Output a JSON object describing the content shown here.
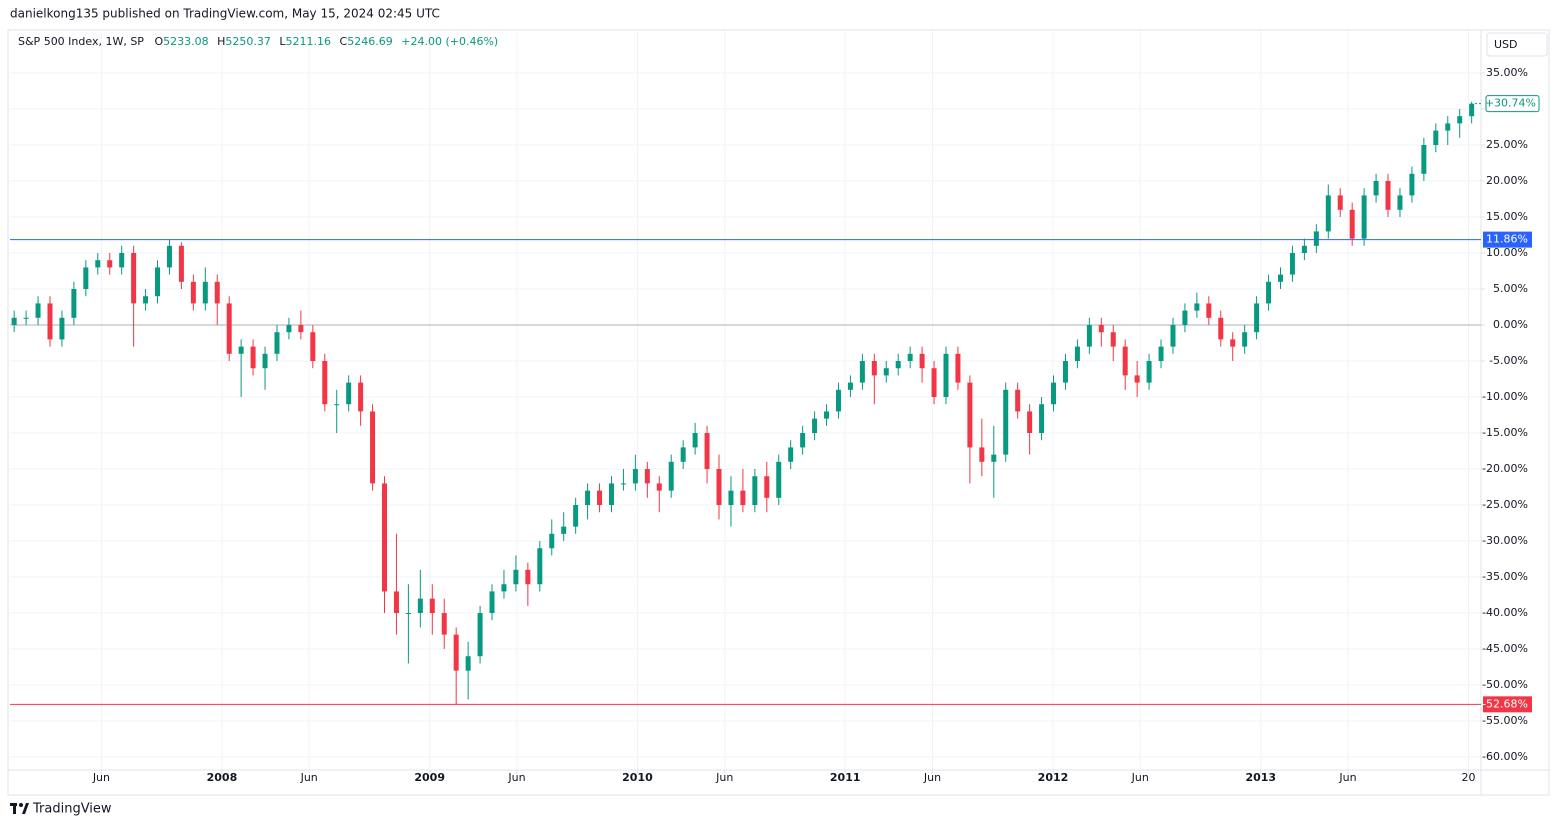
{
  "header": {
    "title": "danielkong135 published on TradingView.com, May 15, 2024 02:45 UTC"
  },
  "legend": {
    "symbol": "S&P 500 Index, 1W, SP",
    "fields": [
      {
        "key": "O",
        "value": "5233.08"
      },
      {
        "key": "H",
        "value": "5250.37"
      },
      {
        "key": "L",
        "value": "5211.16"
      },
      {
        "key": "C",
        "value": "5246.69"
      }
    ],
    "change": "+24.00 (+0.46%)"
  },
  "currency": "USD",
  "brand": "TradingView",
  "chart_data": {
    "type": "candlestick",
    "up_color": "#089981",
    "down_color": "#f23645",
    "grid": true,
    "x": [
      2007,
      2007.0575,
      2007.115,
      2007.1725,
      2007.23,
      2007.2875,
      2007.345,
      2007.4025,
      2007.46,
      2007.5175,
      2007.575,
      2007.6325,
      2007.69,
      2007.7475,
      2007.805,
      2007.8625,
      2007.92,
      2007.9775,
      2008.035,
      2008.0925,
      2008.15,
      2008.2075,
      2008.265,
      2008.3225,
      2008.38,
      2008.4375,
      2008.495,
      2008.5525,
      2008.61,
      2008.6675,
      2008.725,
      2008.7825,
      2008.84,
      2008.8975,
      2008.955,
      2009.0125,
      2009.07,
      2009.1275,
      2009.185,
      2009.2425,
      2009.3,
      2009.3575,
      2009.415,
      2009.4725,
      2009.53,
      2009.5875,
      2009.645,
      2009.7025,
      2009.76,
      2009.8175,
      2009.875,
      2009.9325,
      2009.99,
      2010.0475,
      2010.105,
      2010.1625,
      2010.22,
      2010.2775,
      2010.335,
      2010.3925,
      2010.45,
      2010.5075,
      2010.565,
      2010.6225,
      2010.68,
      2010.7375,
      2010.795,
      2010.8525,
      2010.91,
      2010.9675,
      2011.025,
      2011.0825,
      2011.14,
      2011.1975,
      2011.255,
      2011.3125,
      2011.37,
      2011.4275,
      2011.485,
      2011.5425,
      2011.6,
      2011.6575,
      2011.715,
      2011.7725,
      2011.83,
      2011.8875,
      2011.945,
      2012.0025,
      2012.06,
      2012.1175,
      2012.175,
      2012.2325,
      2012.29,
      2012.3475,
      2012.405,
      2012.4625,
      2012.52,
      2012.5775,
      2012.635,
      2012.6925,
      2012.75,
      2012.8075,
      2012.865,
      2012.9225,
      2012.98,
      2013.0375,
      2013.095,
      2013.1525,
      2013.21,
      2013.2675,
      2013.325,
      2013.3825,
      2013.44,
      2013.4975,
      2013.555,
      2013.6125,
      2013.67,
      2013.7275,
      2013.785,
      2013.8425,
      2013.9,
      2013.9575,
      2014.015
    ],
    "open": [
      0,
      1,
      1,
      3,
      -2,
      1,
      5,
      8,
      9,
      8,
      10,
      3,
      4,
      8,
      11,
      6,
      3,
      6,
      3,
      -4,
      -3,
      -6,
      -4,
      -1,
      0,
      -1,
      -5,
      -11,
      -11,
      -8,
      -12,
      -22,
      -37,
      -40,
      -40,
      -38,
      -40,
      -43,
      -48,
      -46,
      -40,
      -37,
      -36,
      -34,
      -36,
      -31,
      -29,
      -28,
      -25,
      -23,
      -25,
      -22,
      -22,
      -20,
      -22,
      -23,
      -19,
      -17,
      -15,
      -20,
      -25,
      -23,
      -25,
      -21,
      -24,
      -19,
      -17,
      -15,
      -13,
      -12,
      -9,
      -8,
      -5,
      -7,
      -6,
      -5,
      -4,
      -6,
      -10,
      -4,
      -8,
      -17,
      -19,
      -18,
      -9,
      -12,
      -15,
      -11,
      -8,
      -5,
      -3,
      0,
      -1,
      -3,
      -7,
      -8,
      -5,
      -3,
      0,
      2,
      3,
      1,
      -2,
      -3,
      -1,
      3,
      6,
      7,
      10,
      11,
      13,
      18,
      16,
      12,
      18,
      20,
      16,
      18,
      21,
      25,
      27,
      28,
      29
    ],
    "high": [
      2,
      2,
      4,
      4,
      2,
      6,
      9,
      10,
      10,
      11,
      11,
      5,
      9,
      11.86,
      11.5,
      7,
      8,
      7,
      4,
      -2,
      -2,
      -3,
      0,
      1,
      2,
      0,
      -4,
      -9,
      -7,
      -7,
      -11,
      -21,
      -29,
      -36,
      -34,
      -36,
      -38,
      -42,
      -44,
      -39,
      -36,
      -34,
      -32,
      -33,
      -30,
      -27,
      -26,
      -24,
      -22,
      -22,
      -21,
      -20,
      -18,
      -19,
      -21,
      -18,
      -16,
      -13.6,
      -14,
      -18,
      -21,
      -20,
      -20,
      -19,
      -18,
      -16,
      -14,
      -12,
      -11,
      -8,
      -7,
      -4,
      -4,
      -5,
      -4,
      -3,
      -3,
      -5,
      -3,
      -3,
      -7,
      -13,
      -14,
      -8,
      -8,
      -11,
      -10,
      -7,
      -4,
      -2,
      1,
      1,
      0,
      -2,
      -5,
      -4,
      -2,
      1,
      3,
      4.5,
      4,
      2,
      -1,
      0,
      4,
      7,
      8,
      11,
      12,
      14,
      19.5,
      19,
      17,
      19,
      21,
      21,
      19,
      22,
      26,
      28,
      29,
      30,
      31
    ],
    "low": [
      -1,
      0,
      0,
      -3,
      -3,
      0,
      4,
      7,
      7,
      7,
      -3,
      2,
      3,
      7,
      5,
      2,
      2,
      0,
      -5,
      -10,
      -7,
      -9,
      -5,
      -2,
      -2,
      -6,
      -12,
      -15,
      -12,
      -14,
      -23,
      -40,
      -43,
      -47,
      -42,
      -43,
      -45,
      -52.68,
      -52,
      -47,
      -41,
      -38,
      -37,
      -39,
      -37,
      -32,
      -30,
      -29,
      -27,
      -26,
      -26,
      -23,
      -23,
      -24,
      -26,
      -24,
      -20,
      -18,
      -22,
      -27,
      -28,
      -26,
      -26,
      -26,
      -25,
      -20,
      -18,
      -16,
      -14,
      -13,
      -10,
      -9,
      -11,
      -8,
      -7,
      -6,
      -8,
      -11,
      -11,
      -9,
      -22,
      -21,
      -24,
      -19,
      -13,
      -18,
      -16,
      -12,
      -9,
      -6,
      -4,
      -3,
      -5,
      -9,
      -10,
      -9,
      -6,
      -4,
      -1,
      1,
      0,
      -3,
      -5,
      -4,
      -2,
      2,
      5,
      6,
      9,
      10,
      12,
      15,
      11,
      11,
      17,
      15,
      15,
      17,
      20,
      24,
      25,
      26,
      28
    ],
    "close": [
      1,
      1,
      3,
      -2,
      1,
      5,
      8,
      9,
      8,
      10,
      3,
      4,
      8,
      11,
      6,
      3,
      6,
      3,
      -4,
      -3,
      -6,
      -4,
      -1,
      0,
      -1,
      -5,
      -11,
      -11,
      -8,
      -12,
      -22,
      -37,
      -40,
      -40,
      -38,
      -40,
      -43,
      -48,
      -46,
      -40,
      -37,
      -36,
      -34,
      -36,
      -31,
      -29,
      -28,
      -25,
      -23,
      -25,
      -22,
      -22,
      -20,
      -22,
      -23,
      -19,
      -17,
      -15,
      -20,
      -25,
      -23,
      -25,
      -21,
      -24,
      -19,
      -17,
      -15,
      -13,
      -12,
      -9,
      -8,
      -5,
      -7,
      -6,
      -5,
      -4,
      -6,
      -10,
      -4,
      -8,
      -17,
      -19,
      -18,
      -9,
      -12,
      -15,
      -11,
      -8,
      -5,
      -3,
      0,
      -1,
      -3,
      -7,
      -8,
      -5,
      -3,
      0,
      2,
      3,
      1,
      -2,
      -3,
      -1,
      3,
      6,
      7,
      10,
      11,
      13,
      18,
      16,
      12,
      18,
      20,
      16,
      18,
      21,
      25,
      27,
      28,
      29,
      30.74
    ],
    "xlim": [
      2006.98,
      2014.06
    ],
    "xticks": [
      {
        "value": 2007.42,
        "label": "Jun"
      },
      2008,
      {
        "value": 2008.42,
        "label": "Jun"
      },
      2009,
      {
        "value": 2009.42,
        "label": "Jun"
      },
      2010,
      {
        "value": 2010.42,
        "label": "Jun"
      },
      2011,
      {
        "value": 2011.42,
        "label": "Jun"
      },
      2012,
      {
        "value": 2012.42,
        "label": "Jun"
      },
      2013,
      {
        "value": 2013.42,
        "label": "Jun"
      },
      {
        "value": 2014,
        "label": "20"
      }
    ],
    "ylim": [
      -61.8,
      40.97
    ],
    "yticks": [
      {
        "value": 35,
        "label": "35.00%"
      },
      {
        "value": 30,
        "label": "30.00%"
      },
      {
        "value": 25,
        "label": "25.00%"
      },
      {
        "value": 20,
        "label": "20.00%"
      },
      {
        "value": 15,
        "label": "15.00%"
      },
      {
        "value": 10,
        "label": "10.00%"
      },
      {
        "value": 5,
        "label": "5.00%"
      },
      {
        "value": 0,
        "label": "0.00%"
      },
      {
        "value": -5,
        "label": "-5.00%"
      },
      {
        "value": -10,
        "label": "-10.00%"
      },
      {
        "value": -15,
        "label": "-15.00%"
      },
      {
        "value": -20,
        "label": "-20.00%"
      },
      {
        "value": -25,
        "label": "-25.00%"
      },
      {
        "value": -30,
        "label": "-30.00%"
      },
      {
        "value": -35,
        "label": "-35.00%"
      },
      {
        "value": -40,
        "label": "-40.00%"
      },
      {
        "value": -45,
        "label": "-45.00%"
      },
      {
        "value": -50,
        "label": "-50.00%"
      },
      {
        "value": -55,
        "label": "-55.00%"
      },
      {
        "value": -60,
        "label": "-60.00%"
      }
    ],
    "baseline": 0,
    "hlines": [
      {
        "value": 11.86,
        "label": "11.86%",
        "color": "#2962ff"
      },
      {
        "value": -52.68,
        "label": "-52.68%",
        "color": "#f23645"
      }
    ],
    "last": {
      "value": 30.74,
      "label": "+30.74%",
      "color": "#089981"
    }
  }
}
